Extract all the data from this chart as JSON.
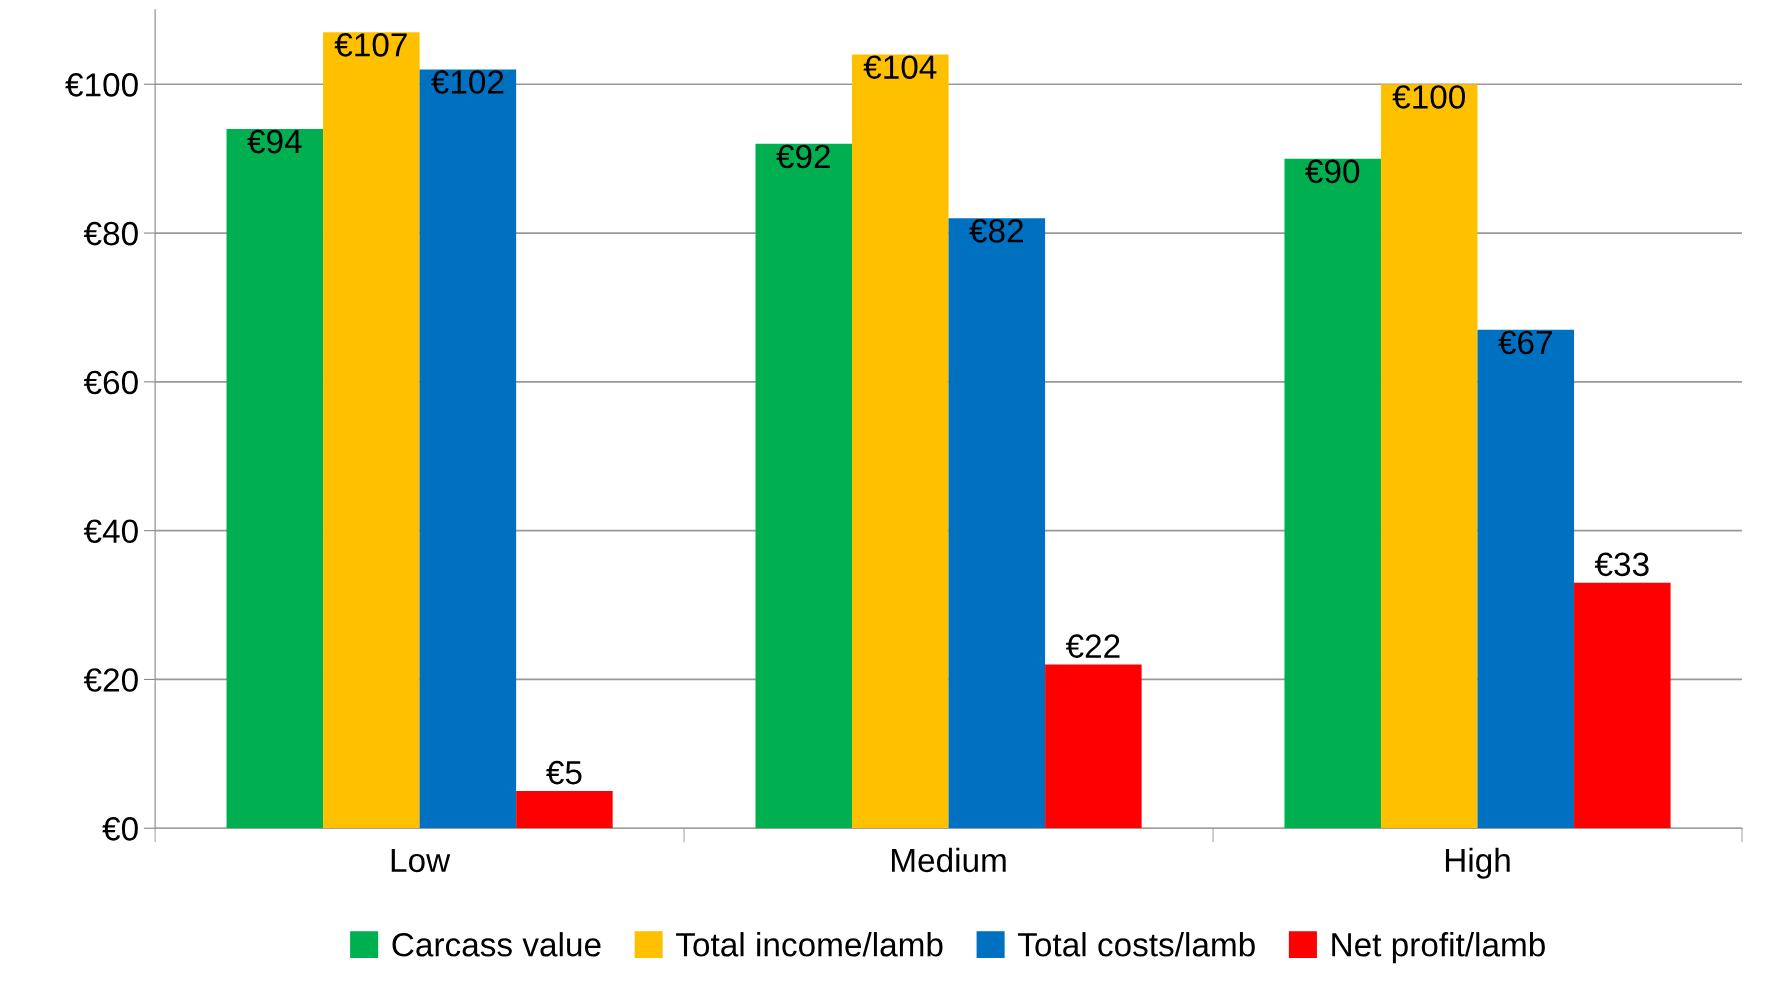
{
  "chart_data": {
    "type": "bar",
    "categories": [
      "Low",
      "Medium",
      "High"
    ],
    "series": [
      {
        "name": "Carcass value",
        "color": "#00b050",
        "values": [
          94,
          92,
          90
        ],
        "value_labels": [
          "€94",
          "€92",
          "€90"
        ]
      },
      {
        "name": "Total income/lamb",
        "color": "#ffc000",
        "values": [
          107,
          104,
          100
        ],
        "value_labels": [
          "€107",
          "€104",
          "€100"
        ]
      },
      {
        "name": "Total costs/lamb",
        "color": "#0070c0",
        "values": [
          102,
          82,
          67
        ],
        "value_labels": [
          "€102",
          "€82",
          "€67"
        ]
      },
      {
        "name": "Net profit/lamb",
        "color": "#ff0000",
        "values": [
          5,
          22,
          33
        ],
        "value_labels": [
          "€5",
          "€22",
          "€33"
        ]
      }
    ],
    "ylim": [
      0,
      110
    ],
    "yticks": [
      {
        "value": 0,
        "label": "€0"
      },
      {
        "value": 20,
        "label": "€20"
      },
      {
        "value": 40,
        "label": "€40"
      },
      {
        "value": 60,
        "label": "€60"
      },
      {
        "value": 80,
        "label": "€80"
      },
      {
        "value": 100,
        "label": "€100"
      }
    ],
    "grid": "y",
    "legend": "bottom"
  }
}
